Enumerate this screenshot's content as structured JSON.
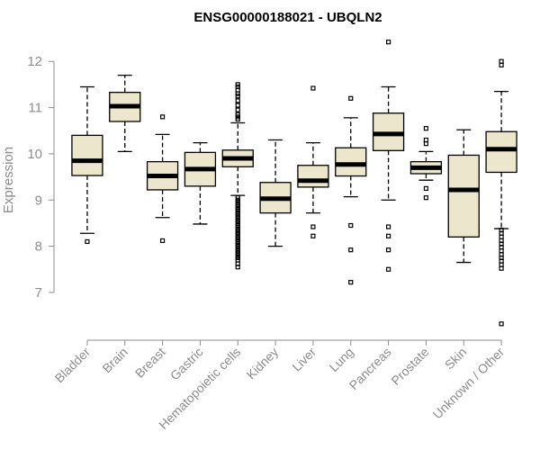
{
  "chart_data": {
    "type": "boxplot",
    "title": "ENSG00000188021 - UBQLN2",
    "ylabel": "Expression",
    "xlabel": "",
    "ylim": [
      6.2,
      12.55
    ],
    "yticks": [
      7,
      8,
      9,
      10,
      11,
      12
    ],
    "categories": [
      "Bladder",
      "Brain",
      "Breast",
      "Gastric",
      "Hematopoietic cells",
      "Kidney",
      "Liver",
      "Lung",
      "Pancreas",
      "Prostate",
      "Skin",
      "Unknown / Other"
    ],
    "series": [
      {
        "name": "Bladder",
        "whisker_low": 8.28,
        "q1": 9.53,
        "median": 9.85,
        "q3": 10.4,
        "whisker_high": 11.45,
        "outliers": [
          8.1
        ]
      },
      {
        "name": "Brain",
        "whisker_low": 10.05,
        "q1": 10.7,
        "median": 11.03,
        "q3": 11.33,
        "whisker_high": 11.7,
        "outliers": []
      },
      {
        "name": "Breast",
        "whisker_low": 8.62,
        "q1": 9.22,
        "median": 9.52,
        "q3": 9.83,
        "whisker_high": 10.42,
        "outliers": [
          10.8,
          8.12
        ]
      },
      {
        "name": "Gastric",
        "whisker_low": 8.48,
        "q1": 9.3,
        "median": 9.67,
        "q3": 10.03,
        "whisker_high": 10.24,
        "outliers": []
      },
      {
        "name": "Hematopoietic cells",
        "whisker_low": 9.1,
        "q1": 9.72,
        "median": 9.9,
        "q3": 10.08,
        "whisker_high": 10.67,
        "outliers": [
          11.5,
          11.45,
          11.38,
          11.3,
          11.25,
          11.15,
          11.05,
          10.95,
          10.85,
          10.8,
          10.75,
          9.05,
          9.0,
          8.95,
          8.9,
          8.85,
          8.8,
          8.75,
          8.7,
          8.65,
          8.6,
          8.55,
          8.5,
          8.45,
          8.4,
          8.35,
          8.3,
          8.25,
          8.2,
          8.15,
          8.1,
          8.05,
          8.0,
          7.95,
          7.9,
          7.85,
          7.8,
          7.75,
          7.7,
          7.62,
          7.55
        ]
      },
      {
        "name": "Kidney",
        "whisker_low": 8.0,
        "q1": 8.72,
        "median": 9.03,
        "q3": 9.38,
        "whisker_high": 10.3,
        "outliers": []
      },
      {
        "name": "Liver",
        "whisker_low": 8.72,
        "q1": 9.28,
        "median": 9.42,
        "q3": 9.75,
        "whisker_high": 10.24,
        "outliers": [
          11.42,
          8.42,
          8.22
        ]
      },
      {
        "name": "Lung",
        "whisker_low": 9.07,
        "q1": 9.52,
        "median": 9.77,
        "q3": 10.13,
        "whisker_high": 10.78,
        "outliers": [
          11.2,
          8.45,
          7.92,
          7.22
        ]
      },
      {
        "name": "Pancreas",
        "whisker_low": 9.0,
        "q1": 10.07,
        "median": 10.43,
        "q3": 10.88,
        "whisker_high": 11.45,
        "outliers": [
          12.42,
          8.42,
          8.22,
          7.92,
          7.5
        ]
      },
      {
        "name": "Prostate",
        "whisker_low": 9.43,
        "q1": 9.57,
        "median": 9.7,
        "q3": 9.83,
        "whisker_high": 10.05,
        "outliers": [
          10.55,
          10.3,
          10.22,
          9.25,
          9.05
        ]
      },
      {
        "name": "Skin",
        "whisker_low": 7.65,
        "q1": 8.2,
        "median": 9.22,
        "q3": 9.97,
        "whisker_high": 10.52,
        "outliers": []
      },
      {
        "name": "Unknown / Other",
        "whisker_low": 8.38,
        "q1": 9.6,
        "median": 10.1,
        "q3": 10.48,
        "whisker_high": 11.35,
        "outliers": [
          12.0,
          11.92,
          8.35,
          8.28,
          8.2,
          8.12,
          8.05,
          7.98,
          7.9,
          7.82,
          7.75,
          7.68,
          7.6,
          7.52,
          6.32
        ]
      }
    ]
  }
}
